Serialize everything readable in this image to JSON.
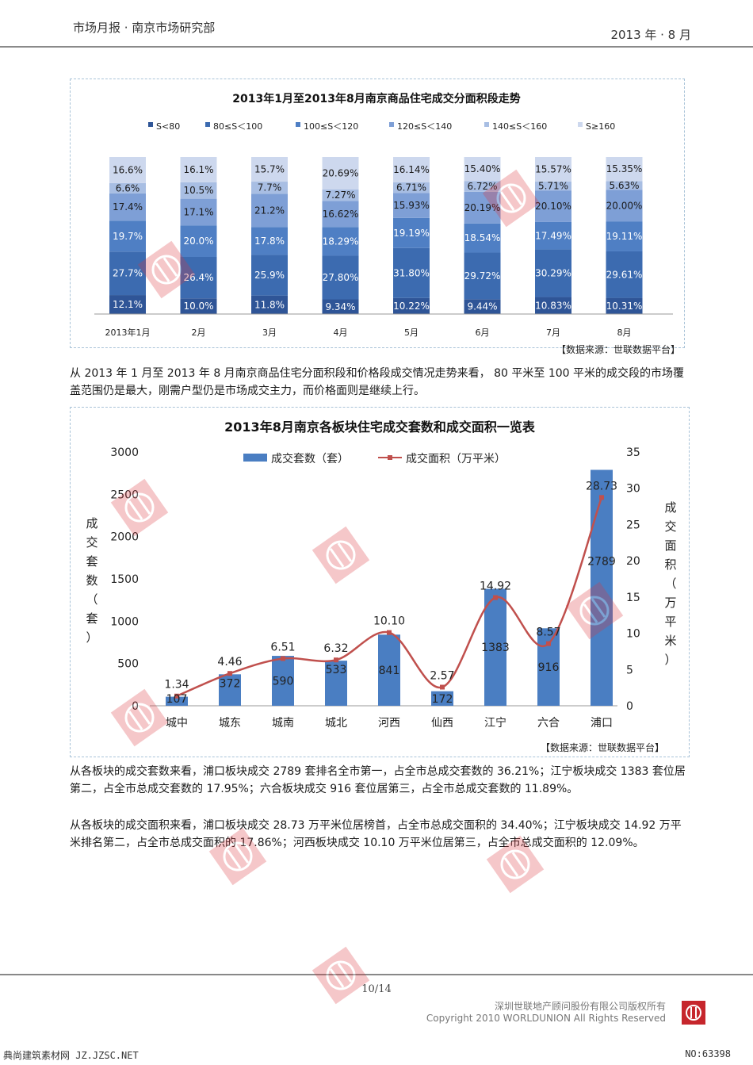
{
  "header": {
    "left": "市场月报 · 南京市场研究部",
    "right": "2013 年 · 8 月"
  },
  "colors": {
    "s1": "#2f5597",
    "s2": "#3c6bb0",
    "s3": "#4f7fc4",
    "s4": "#7e9fd6",
    "s5": "#a8bee3",
    "s6": "#cdd8ee",
    "bar": "#4a7ec2",
    "line": "#c0504d"
  },
  "chart1": {
    "title": "2013年1月至2013年8月南京商品住宅成交分面积段走势",
    "source": "【数据来源：世联数据平台】"
  },
  "para1": "从 2013 年 1 月至 2013 年 8 月南京商品住宅分面积段和价格段成交情况走势来看， 80 平米至 100 平米的成交段的市场覆盖范围仍是最大，刚需户型仍是市场成交主力，而价格面则是继续上行。",
  "chart2": {
    "title": "2013年8月南京各板块住宅成交套数和成交面积一览表",
    "source": "【数据来源：世联数据平台】"
  },
  "para2": "从各板块的成交套数来看，浦口板块成交 2789 套排名全市第一，占全市总成交套数的 36.21%；江宁板块成交 1383 套位居第二，占全市总成交套数的 17.95%；六合板块成交 916 套位居第三，占全市总成交套数的 11.89%。",
  "para3": "从各板块的成交面积来看，浦口板块成交 28.73 万平米位居榜首，占全市总成交面积的 34.40%；江宁板块成交 14.92 万平米排名第二，占全市总成交面积的 17.86%；河西板块成交 10.10 万平米位居第三，占全市总成交面积的 12.09%。",
  "footer": {
    "page": "10/14",
    "copy1": "深圳世联地产顾问股份有限公司版权所有",
    "copy2": "Copyright 2010 WORLDUNION All Rights Reserved"
  },
  "watermark": {
    "left": "典尚建筑素材网 JZ.JZSC.NET",
    "right": "NO:63398",
    "stamp": "世聯地産"
  },
  "chart_data": [
    {
      "type": "bar",
      "stacked": true,
      "percent": true,
      "title": "2013年1月至2013年8月南京商品住宅成交分面积段走势",
      "categories": [
        "2013年1月",
        "2月",
        "3月",
        "4月",
        "5月",
        "6月",
        "7月",
        "8月"
      ],
      "legend_position": "top",
      "series": [
        {
          "name": "S<80",
          "values": [
            12.1,
            10.0,
            11.8,
            9.34,
            10.22,
            9.44,
            10.83,
            10.31
          ],
          "labels": [
            "12.1%",
            "10.0%",
            "11.8%",
            "9.34%",
            "10.22%",
            "9.44%",
            "10.83%",
            "10.31%"
          ]
        },
        {
          "name": "80≤S＜100",
          "values": [
            27.7,
            26.4,
            25.9,
            27.8,
            31.8,
            29.72,
            30.29,
            29.61
          ],
          "labels": [
            "27.7%",
            "26.4%",
            "25.9%",
            "27.80%",
            "31.80%",
            "29.72%",
            "30.29%",
            "29.61%"
          ]
        },
        {
          "name": "100≤S＜120",
          "values": [
            19.7,
            20.0,
            17.8,
            18.29,
            19.19,
            18.54,
            17.49,
            19.11
          ],
          "labels": [
            "19.7%",
            "20.0%",
            "17.8%",
            "18.29%",
            "19.19%",
            "18.54%",
            "17.49%",
            "19.11%"
          ]
        },
        {
          "name": "120≤S＜140",
          "values": [
            17.4,
            17.1,
            21.2,
            16.62,
            15.93,
            20.19,
            20.1,
            20.0
          ],
          "labels": [
            "17.4%",
            "17.1%",
            "21.2%",
            "16.62%",
            "15.93%",
            "20.19%",
            "20.10%",
            "20.00%"
          ]
        },
        {
          "name": "140≤S＜160",
          "values": [
            6.6,
            10.5,
            7.7,
            7.27,
            6.71,
            6.72,
            5.71,
            5.63
          ],
          "labels": [
            "6.6%",
            "10.5%",
            "7.7%",
            "7.27%",
            "6.71%",
            "6.72%",
            "5.71%",
            "5.63%"
          ]
        },
        {
          "name": "S≥160",
          "values": [
            16.6,
            16.1,
            15.7,
            20.69,
            16.14,
            15.4,
            15.57,
            15.35
          ],
          "labels": [
            "16.6%",
            "16.1%",
            "15.7%",
            "20.69%",
            "16.14%",
            "15.40%",
            "15.57%",
            "15.35%"
          ]
        }
      ]
    },
    {
      "type": "bar",
      "combo": "bar+line",
      "title": "2013年8月南京各板块住宅成交套数和成交面积一览表",
      "categories": [
        "城中",
        "城东",
        "城南",
        "城北",
        "河西",
        "仙西",
        "江宁",
        "六合",
        "浦口"
      ],
      "ylabel": "成交套数（套）",
      "y2label": "成交面积（万平米）",
      "ylim": [
        0,
        3000
      ],
      "yticks": [
        "0",
        "500",
        "1000",
        "1500",
        "2000",
        "2500",
        "3000"
      ],
      "y2lim": [
        0,
        35
      ],
      "y2ticks": [
        "0",
        "5",
        "10",
        "15",
        "20",
        "25",
        "30",
        "35"
      ],
      "legend_position": "top",
      "series": [
        {
          "name": "成交套数（套）",
          "type": "bar",
          "axis": "left",
          "values": [
            107,
            372,
            590,
            533,
            841,
            172,
            1383,
            916,
            2789
          ],
          "labels": [
            "107",
            "372",
            "590",
            "533",
            "841",
            "172",
            "1383",
            "916",
            "2789"
          ]
        },
        {
          "name": "成交面积（万平米）",
          "type": "line",
          "axis": "right",
          "values": [
            1.34,
            4.46,
            6.51,
            6.32,
            10.1,
            2.57,
            14.92,
            8.57,
            28.73
          ],
          "labels": [
            "1.34",
            "4.46",
            "6.51",
            "6.32",
            "10.10",
            "2.57",
            "14.92",
            "8.57",
            "28.73"
          ]
        }
      ]
    }
  ]
}
